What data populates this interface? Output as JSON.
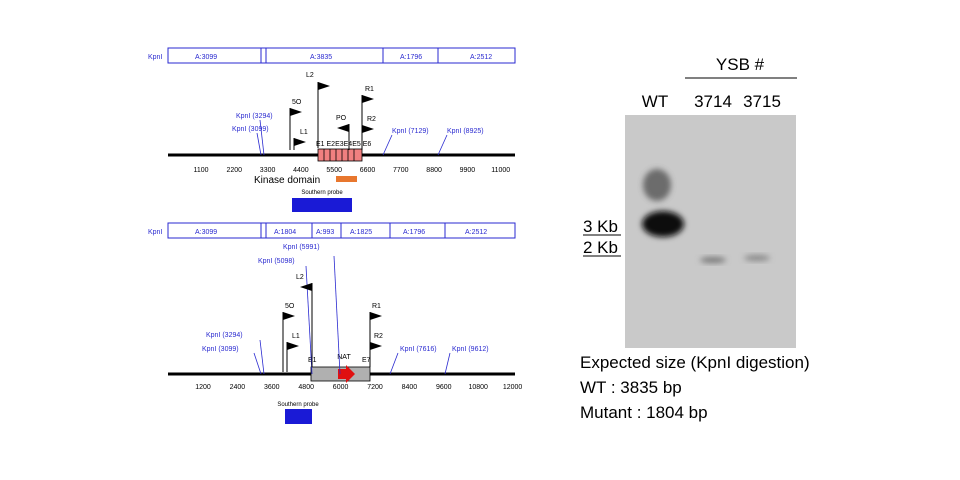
{
  "gene_maps": [
    {
      "restriction_label": "KpnI",
      "fragments": [
        "A:3099",
        "A:3835",
        "A:1796",
        "A:2512"
      ],
      "scale_ticks": [
        "1100",
        "2200",
        "3300",
        "4400",
        "5500",
        "6600",
        "7700",
        "8800",
        "9900",
        "11000"
      ],
      "sites": [
        "KpnI (3294)",
        "KpnI (3099)",
        "KpnI (7129)",
        "KpnI (8925)"
      ],
      "primers": [
        "L2",
        "5O",
        "L1",
        "PO",
        "R1",
        "R2"
      ],
      "exons": "E1 E2E3E4E5 E6",
      "domain": "Kinase domain",
      "probe": "Southern probe"
    },
    {
      "restriction_label": "KpnI",
      "fragments": [
        "A:3099",
        "A:1804",
        "A:993",
        "A:1825",
        "A:1796",
        "A:2512"
      ],
      "scale_ticks": [
        "1200",
        "2400",
        "3600",
        "4800",
        "6000",
        "7200",
        "8400",
        "9600",
        "10800",
        "12000"
      ],
      "sites": [
        "KpnI (5991)",
        "KpnI (5098)",
        "KpnI (3294)",
        "KpnI (3099)",
        "KpnI (7616)",
        "KpnI (9612)"
      ],
      "primers": [
        "L2",
        "5O",
        "L1",
        "R1",
        "R2"
      ],
      "exons": [
        "E1",
        "E7"
      ],
      "marker": "NAT",
      "probe": "Southern probe"
    }
  ],
  "blot": {
    "group_label": "YSB #",
    "lanes": [
      "WT",
      "3714",
      "3715"
    ],
    "size_markers": [
      "3 Kb",
      "2 Kb"
    ],
    "notes": [
      "Expected size (KpnI digestion)",
      "WT : 3835 bp",
      "Mutant : 1804 bp"
    ]
  }
}
